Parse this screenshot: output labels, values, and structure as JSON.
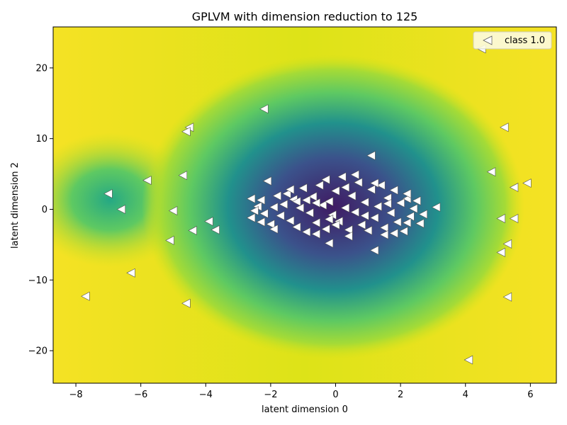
{
  "chart_data": {
    "type": "scatter",
    "title": "GPLVM with dimension reduction to 125",
    "xlabel": "latent dimension 0",
    "ylabel": "latent dimension 2",
    "xlim": [
      -8.7,
      6.8
    ],
    "ylim": [
      -24.6,
      25.8
    ],
    "xticks": [
      -8,
      -6,
      -4,
      -2,
      0,
      2,
      4,
      6
    ],
    "yticks": [
      -20,
      -10,
      0,
      10,
      20
    ],
    "xtick_labels": [
      "−8",
      "−6",
      "−4",
      "−2",
      "0",
      "2",
      "4",
      "6"
    ],
    "ytick_labels": [
      "−20",
      "−10",
      "0",
      "10",
      "20"
    ],
    "background": "heatmap of GP predictive variance (viridis colormap, dark purple = low, yellow = high)",
    "colors": {
      "marker_fill": "#ffffff",
      "marker_edge": "#555555",
      "legend_bg": "#fdfbe0"
    },
    "legend": {
      "placement": "top-right",
      "entries": [
        "class 1.0"
      ]
    },
    "series": [
      {
        "name": "class 1.0",
        "marker": "triangle-left",
        "points": [
          [
            4.5,
            22.7
          ],
          [
            -2.2,
            14.2
          ],
          [
            5.2,
            11.6
          ],
          [
            -4.5,
            11.6
          ],
          [
            -4.6,
            11.0
          ],
          [
            1.1,
            7.6
          ],
          [
            4.8,
            5.3
          ],
          [
            -4.7,
            4.8
          ],
          [
            -5.8,
            4.1
          ],
          [
            5.9,
            3.7
          ],
          [
            5.5,
            3.1
          ],
          [
            -7.0,
            2.2
          ],
          [
            -6.6,
            0.0
          ],
          [
            -5.0,
            -0.2
          ],
          [
            3.1,
            0.3
          ],
          [
            5.1,
            -1.3
          ],
          [
            5.5,
            -1.3
          ],
          [
            -3.9,
            -1.7
          ],
          [
            -4.4,
            -3.0
          ],
          [
            -3.7,
            -2.9
          ],
          [
            -5.1,
            -4.4
          ],
          [
            5.3,
            -4.9
          ],
          [
            5.1,
            -6.1
          ],
          [
            -6.3,
            -9.0
          ],
          [
            -7.7,
            -12.3
          ],
          [
            5.3,
            -12.4
          ],
          [
            -4.6,
            -13.3
          ],
          [
            4.1,
            -21.3
          ],
          [
            1.2,
            -5.8
          ],
          [
            -0.2,
            -4.8
          ],
          [
            -2.6,
            1.5
          ],
          [
            -2.6,
            -1.2
          ],
          [
            2.7,
            -0.7
          ],
          [
            2.2,
            1.5
          ],
          [
            -2.1,
            4.0
          ],
          [
            -2.3,
            1.3
          ],
          [
            -2.4,
            0.4
          ],
          [
            -2.2,
            -0.6
          ],
          [
            -2.3,
            -1.8
          ],
          [
            -2.0,
            -2.1
          ],
          [
            -1.9,
            -2.8
          ],
          [
            -1.7,
            -0.9
          ],
          [
            -1.6,
            0.7
          ],
          [
            -1.5,
            2.2
          ],
          [
            -1.4,
            -1.6
          ],
          [
            -1.3,
            1.4
          ],
          [
            -1.2,
            -2.5
          ],
          [
            -1.1,
            0.2
          ],
          [
            -1.0,
            3.0
          ],
          [
            -0.9,
            -3.2
          ],
          [
            -0.8,
            -0.5
          ],
          [
            -0.7,
            1.8
          ],
          [
            -0.6,
            -1.9
          ],
          [
            -0.5,
            3.4
          ],
          [
            -0.4,
            0.6
          ],
          [
            -0.3,
            -2.8
          ],
          [
            -0.2,
            1.1
          ],
          [
            -0.1,
            -0.8
          ],
          [
            0.0,
            2.6
          ],
          [
            0.1,
            -1.7
          ],
          [
            0.2,
            4.6
          ],
          [
            0.3,
            0.2
          ],
          [
            0.4,
            -2.9
          ],
          [
            0.5,
            1.9
          ],
          [
            0.6,
            -0.4
          ],
          [
            0.7,
            3.8
          ],
          [
            0.8,
            -2.2
          ],
          [
            0.9,
            1.0
          ],
          [
            1.0,
            -3.0
          ],
          [
            1.1,
            2.8
          ],
          [
            1.2,
            -1.2
          ],
          [
            1.3,
            0.4
          ],
          [
            1.4,
            3.4
          ],
          [
            1.5,
            -2.6
          ],
          [
            1.6,
            1.6
          ],
          [
            1.7,
            -0.5
          ],
          [
            1.8,
            2.7
          ],
          [
            1.9,
            -1.8
          ],
          [
            2.0,
            0.9
          ],
          [
            2.1,
            -3.1
          ],
          [
            2.2,
            2.2
          ],
          [
            2.3,
            -1.0
          ],
          [
            2.4,
            0.1
          ],
          [
            2.5,
            1.2
          ],
          [
            2.6,
            -2.0
          ],
          [
            -1.8,
            1.9
          ],
          [
            -1.2,
            1.1
          ],
          [
            -0.6,
            -3.5
          ],
          [
            0.0,
            -2.2
          ],
          [
            0.6,
            4.9
          ],
          [
            1.2,
            3.7
          ],
          [
            1.8,
            -3.4
          ],
          [
            -0.3,
            4.2
          ],
          [
            0.4,
            -3.8
          ],
          [
            1.5,
            -3.6
          ],
          [
            -2.5,
            -0.2
          ],
          [
            -1.9,
            0.3
          ],
          [
            -1.4,
            2.8
          ],
          [
            -0.9,
            1.3
          ],
          [
            -0.2,
            -1.4
          ],
          [
            0.3,
            3.1
          ],
          [
            0.9,
            -0.9
          ],
          [
            1.6,
            0.8
          ],
          [
            2.2,
            -1.9
          ],
          [
            -0.6,
            0.9
          ]
        ]
      }
    ]
  }
}
